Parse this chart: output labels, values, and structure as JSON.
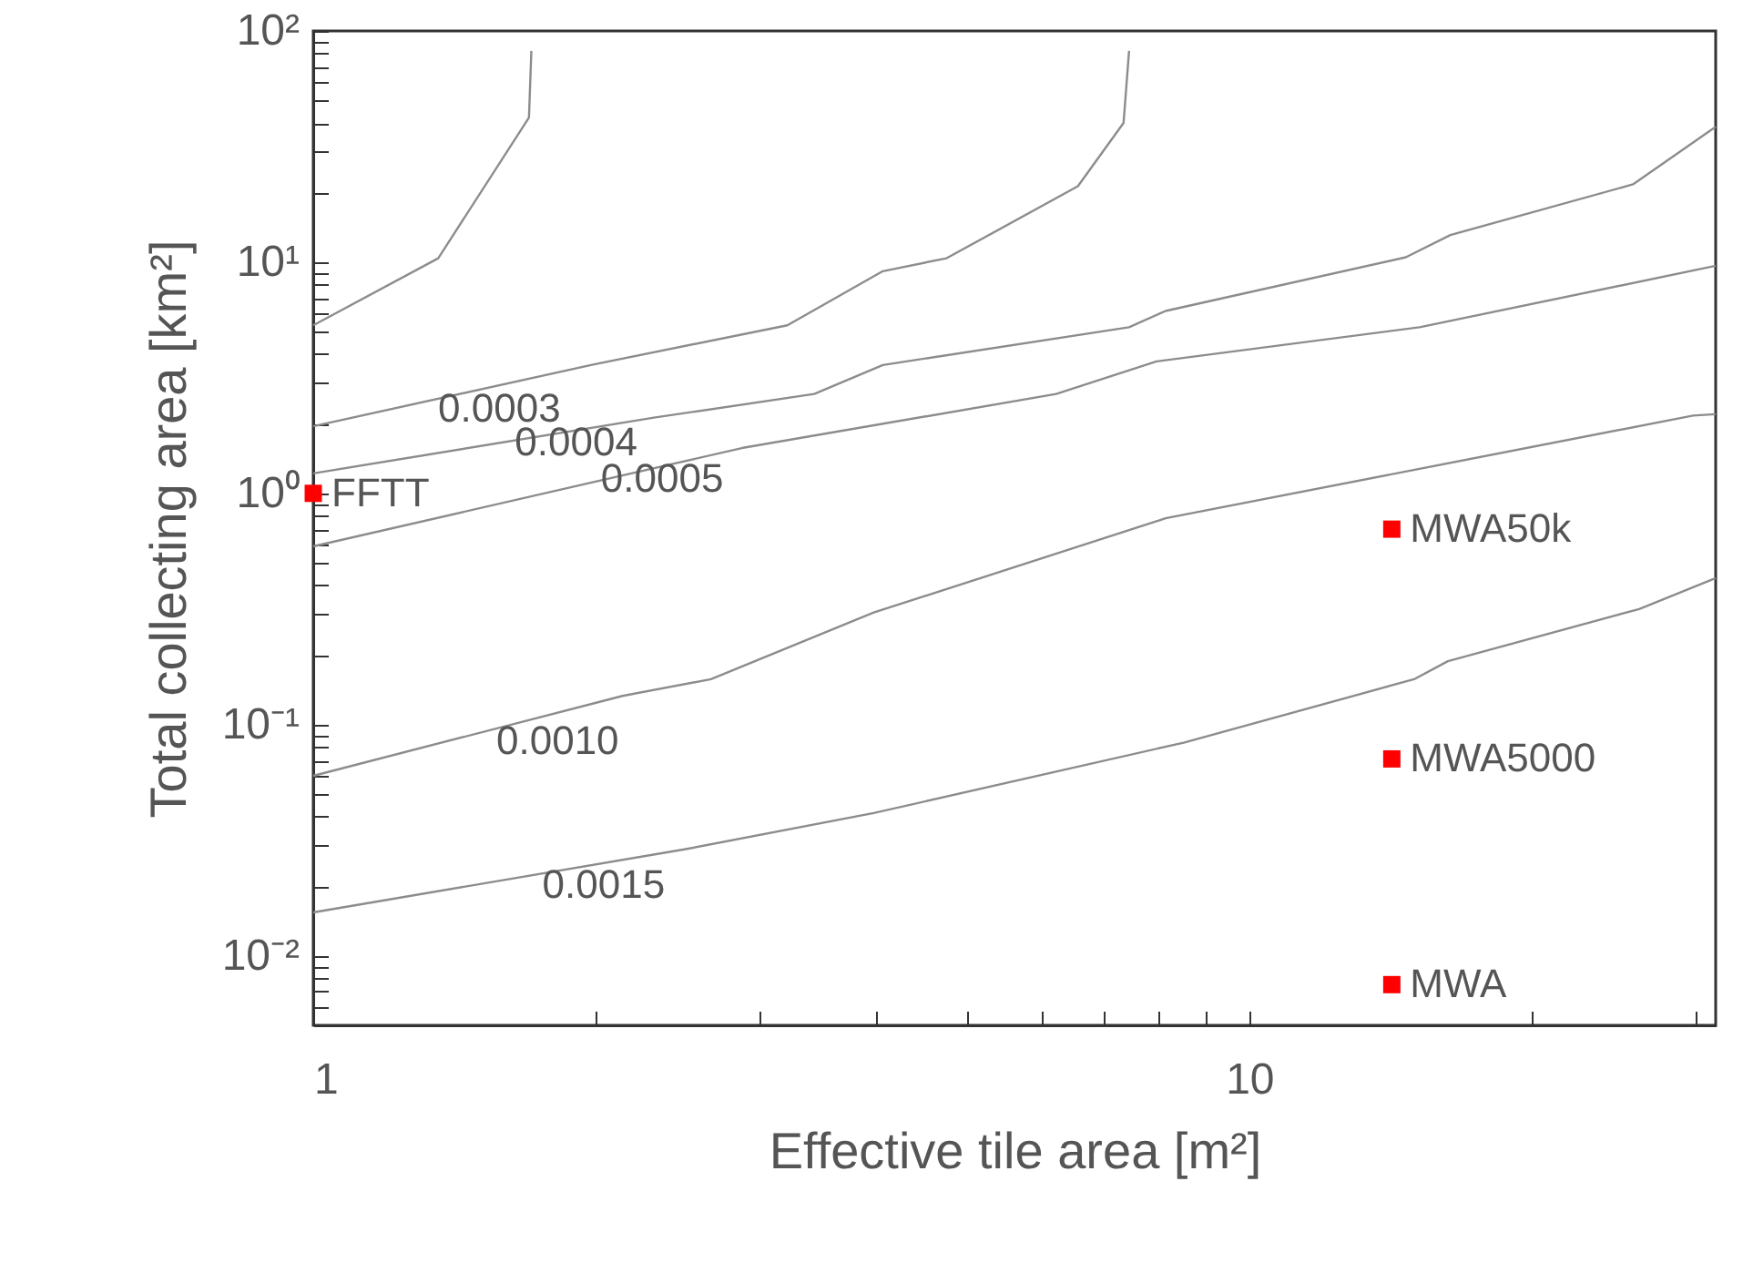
{
  "chart_data": {
    "type": "line",
    "xlabel": "Effective tile area [m²]",
    "ylabel": "Total collecting area [km²]",
    "log": "xy",
    "grid": false,
    "xlim": [
      1,
      31.5
    ],
    "xticks": [
      1,
      {
        "value": 2,
        "label": null
      },
      {
        "value": 3,
        "label": null
      },
      {
        "value": 4,
        "label": null
      },
      {
        "value": 5,
        "label": null
      },
      {
        "value": 6,
        "label": null
      },
      {
        "value": 7,
        "label": null
      },
      {
        "value": 8,
        "label": null
      },
      {
        "value": 9,
        "label": null
      },
      10,
      {
        "value": 20,
        "label": null
      },
      {
        "value": 30,
        "label": null
      }
    ],
    "ylim": [
      0.005,
      100
    ],
    "yticks": [
      {
        "value": 0.006,
        "label": null
      },
      {
        "value": 0.007,
        "label": null
      },
      {
        "value": 0.008,
        "label": null
      },
      {
        "value": 0.009,
        "label": null
      },
      {
        "value": 0.01,
        "label": "10⁻²"
      },
      {
        "value": 0.02,
        "label": null
      },
      {
        "value": 0.03,
        "label": null
      },
      {
        "value": 0.04,
        "label": null
      },
      {
        "value": 0.05,
        "label": null
      },
      {
        "value": 0.06,
        "label": null
      },
      {
        "value": 0.07,
        "label": null
      },
      {
        "value": 0.08,
        "label": null
      },
      {
        "value": 0.09,
        "label": null
      },
      {
        "value": 0.1,
        "label": "10⁻¹"
      },
      {
        "value": 0.2,
        "label": null
      },
      {
        "value": 0.3,
        "label": null
      },
      {
        "value": 0.4,
        "label": null
      },
      {
        "value": 0.5,
        "label": null
      },
      {
        "value": 0.6,
        "label": null
      },
      {
        "value": 0.7,
        "label": null
      },
      {
        "value": 0.8,
        "label": null
      },
      {
        "value": 0.9,
        "label": null
      },
      {
        "value": 1,
        "label": "10⁰"
      },
      {
        "value": 2,
        "label": null
      },
      {
        "value": 3,
        "label": null
      },
      {
        "value": 4,
        "label": null
      },
      {
        "value": 5,
        "label": null
      },
      {
        "value": 6,
        "label": null
      },
      {
        "value": 7,
        "label": null
      },
      {
        "value": 8,
        "label": null
      },
      {
        "value": 9,
        "label": null
      },
      {
        "value": 10,
        "label": "10¹"
      },
      {
        "value": 20,
        "label": null
      },
      {
        "value": 30,
        "label": null
      },
      {
        "value": 40,
        "label": null
      },
      {
        "value": 50,
        "label": null
      },
      {
        "value": 60,
        "label": null
      },
      {
        "value": 70,
        "label": null
      },
      {
        "value": 80,
        "label": null
      },
      {
        "value": 90,
        "label": null
      },
      {
        "value": 100,
        "label": "10²"
      }
    ],
    "series": [
      {
        "color": "#8c8c8c",
        "x": [
          1,
          1.36,
          1.7,
          1.71
        ],
        "values": [
          5.33,
          10.4,
          42.2,
          82
        ]
      },
      {
        "color": "#8c8c8c",
        "x": [
          1,
          1.98,
          3.21,
          4.06,
          4.75,
          6.56,
          7.34,
          7.44
        ],
        "values": [
          1.95,
          3.59,
          5.33,
          9.14,
          10.4,
          21.3,
          40,
          82
        ]
      },
      {
        "color": "#8c8c8c",
        "x": [
          1,
          2.32,
          3.43,
          4.06,
          7.44,
          8.14,
          14.7,
          16.4,
          25.7,
          31.5
        ],
        "values": [
          1.22,
          2.13,
          2.69,
          3.59,
          5.23,
          6.15,
          10.5,
          13.1,
          21.7,
          38.5
        ]
      },
      {
        "color": "#8c8c8c",
        "x": [
          1,
          2.87,
          6.22,
          7.96,
          15.2,
          31.5
        ],
        "values": [
          0.59,
          1.57,
          2.69,
          3.72,
          5.23,
          9.64
        ]
      },
      {
        "color": "#8c8c8c",
        "x": [
          1,
          2.14,
          2.66,
          3.97,
          8.14,
          29.8,
          31.5
        ],
        "values": [
          0.06,
          0.133,
          0.157,
          0.305,
          0.78,
          2.17,
          2.2
        ]
      },
      {
        "color": "#8c8c8c",
        "x": [
          1,
          2.5,
          3.97,
          8.51,
          15.0,
          16.3,
          26.1,
          31.5
        ],
        "values": [
          0.0154,
          0.0289,
          0.0414,
          0.0835,
          0.157,
          0.188,
          0.316,
          0.43
        ]
      },
      {
        "type": "scatter",
        "marker": "square",
        "color": "#ff0000",
        "x": [
          1,
          14.2,
          14.2,
          14.2
        ],
        "values": [
          1.0,
          0.7,
          0.071,
          0.0075
        ]
      }
    ],
    "annotations": [
      {
        "text": "0.0003",
        "x": 1.3,
        "y": 2.33
      },
      {
        "text": "0.0004",
        "x": 1.57,
        "y": 1.66
      },
      {
        "text": "0.0005",
        "x": 1.94,
        "y": 1.15
      },
      {
        "text": "0.0010",
        "x": 1.5,
        "y": 0.085
      },
      {
        "text": "0.0015",
        "x": 1.68,
        "y": 0.0202
      },
      {
        "text": "FFTT",
        "x": 1,
        "y": 1.0
      },
      {
        "text": "MWA50k",
        "x": 14.2,
        "y": 0.7
      },
      {
        "text": "MWA5000",
        "x": 14.2,
        "y": 0.071
      },
      {
        "text": "MWA",
        "x": 14.2,
        "y": 0.0075
      }
    ]
  }
}
